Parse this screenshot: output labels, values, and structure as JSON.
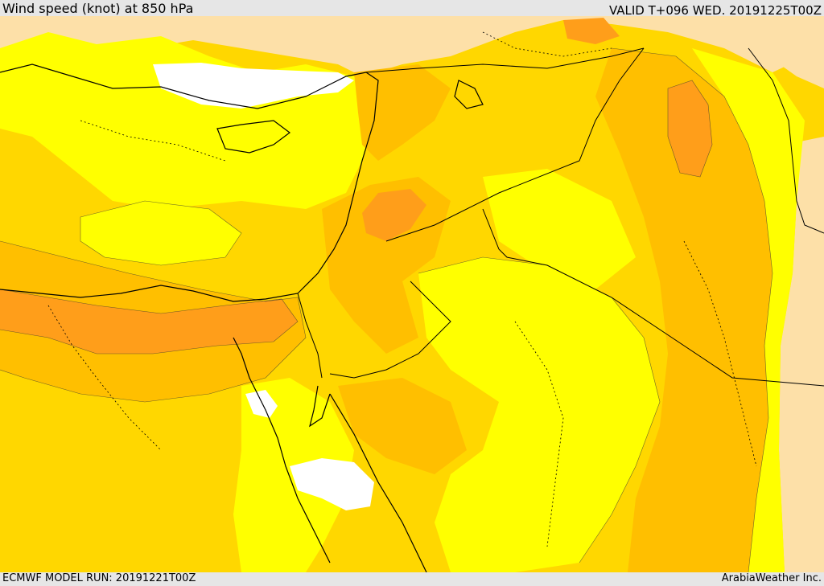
{
  "header": {
    "title": "Wind speed (knot) at 850 hPa",
    "valid": "VALID T+096 WED. 20191225T00Z"
  },
  "footer": {
    "model_run": "ECMWF MODEL RUN: 20191221T00Z",
    "credit": "ArabiaWeather Inc."
  },
  "map": {
    "variable": "wind speed at 850 hPa",
    "colors": {
      "calm": "#ffffff",
      "light": "#fde0a8",
      "pale_yellow": "#ffff6e",
      "yellow": "#ffff00",
      "gold": "#ffd700",
      "amber": "#ffbf00",
      "orange": "#ff9e1a"
    }
  }
}
